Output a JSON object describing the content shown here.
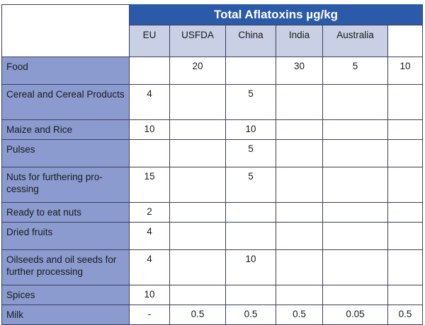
{
  "table": {
    "title": "Total Aflatoxins µg/kg",
    "columns": [
      "EU",
      "USFDA",
      "China",
      "India",
      "Australia",
      ""
    ],
    "rows": [
      {
        "label": "Food",
        "values": [
          "",
          "20",
          "",
          "30",
          "5",
          "10"
        ]
      },
      {
        "label": "Cereal and Cereal Products",
        "values": [
          "4",
          "",
          "5",
          "",
          "",
          ""
        ]
      },
      {
        "label": "Maize and Rice",
        "values": [
          "10",
          "",
          "10",
          "",
          "",
          ""
        ]
      },
      {
        "label": "Pulses",
        "values": [
          "",
          "",
          "5",
          "",
          "",
          ""
        ]
      },
      {
        "label": "Nuts for furthering pro-cessing",
        "values": [
          "15",
          "",
          "5",
          "",
          "",
          ""
        ]
      },
      {
        "label": "Ready to eat nuts",
        "values": [
          "2",
          "",
          "",
          "",
          "",
          ""
        ]
      },
      {
        "label": "Dried fruits",
        "values": [
          "4",
          "",
          "",
          "",
          "",
          ""
        ]
      },
      {
        "label": "Oilseeds and oil seeds for further processing",
        "values": [
          "4",
          "",
          "10",
          "",
          "",
          ""
        ]
      },
      {
        "label": "Spices",
        "values": [
          "10",
          "",
          "",
          "",
          "",
          ""
        ]
      },
      {
        "label": "Milk",
        "values": [
          "-",
          "0.5",
          "0.5",
          "0.5",
          "0.05",
          "0.5"
        ]
      }
    ]
  }
}
